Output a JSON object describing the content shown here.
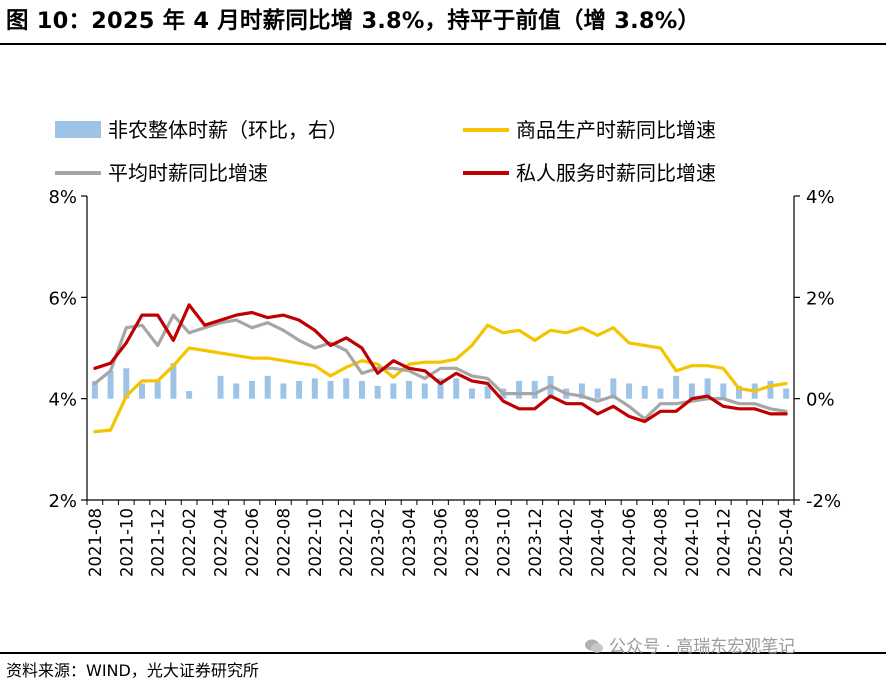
{
  "title": "图 10：2025 年 4 月时薪同比增 3.8%，持平于前值（增 3.8%）",
  "source": "资料来源：WIND，光大证券研究所",
  "watermark": "公众号 · 高瑞东宏观笔记",
  "colors": {
    "bar": "#9dc3e6",
    "goods": "#f5c400",
    "average": "#a6a6a6",
    "services": "#c00000"
  },
  "chart_data": {
    "type": "line",
    "x": [
      "2021-08",
      "2021-09",
      "2021-10",
      "2021-11",
      "2021-12",
      "2022-01",
      "2022-02",
      "2022-03",
      "2022-04",
      "2022-05",
      "2022-06",
      "2022-07",
      "2022-08",
      "2022-09",
      "2022-10",
      "2022-11",
      "2022-12",
      "2023-01",
      "2023-02",
      "2023-03",
      "2023-04",
      "2023-05",
      "2023-06",
      "2023-07",
      "2023-08",
      "2023-09",
      "2023-10",
      "2023-11",
      "2023-12",
      "2024-01",
      "2024-02",
      "2024-03",
      "2024-04",
      "2024-05",
      "2024-06",
      "2024-07",
      "2024-08",
      "2024-09",
      "2024-10",
      "2024-11",
      "2024-12",
      "2025-01",
      "2025-02",
      "2025-03",
      "2025-04"
    ],
    "x_tick_labels": [
      "2021-08",
      "2021-10",
      "2021-12",
      "2022-02",
      "2022-04",
      "2022-06",
      "2022-08",
      "2022-10",
      "2022-12",
      "2023-02",
      "2023-04",
      "2023-06",
      "2023-08",
      "2023-10",
      "2023-12",
      "2024-02",
      "2024-04",
      "2024-06",
      "2024-08",
      "2024-10",
      "2024-12",
      "2025-02",
      "2025-04"
    ],
    "y_left_range": [
      2,
      8
    ],
    "y_left_ticks": [
      "2%",
      "4%",
      "6%",
      "8%"
    ],
    "y_right_range": [
      -2,
      4
    ],
    "y_right_ticks": [
      "-2%",
      "0%",
      "2%",
      "4%"
    ],
    "legend_position": "top",
    "series": [
      {
        "name": "非农整体时薪（环比，右）",
        "kind": "bar",
        "axis": "right",
        "color": "#9dc3e6",
        "values": [
          0.35,
          0.55,
          0.6,
          0.3,
          0.35,
          0.7,
          0.15,
          0.0,
          0.45,
          0.3,
          0.35,
          0.45,
          0.3,
          0.35,
          0.4,
          0.35,
          0.4,
          0.35,
          0.25,
          0.3,
          0.35,
          0.3,
          0.4,
          0.4,
          0.2,
          0.25,
          0.2,
          0.35,
          0.35,
          0.45,
          0.2,
          0.3,
          0.2,
          0.4,
          0.3,
          0.25,
          0.2,
          0.45,
          0.3,
          0.4,
          0.3,
          0.25,
          0.3,
          0.35,
          0.2
        ]
      },
      {
        "name": "商品生产时薪同比增速",
        "kind": "line",
        "axis": "left",
        "color": "#f5c400",
        "values": [
          3.35,
          3.38,
          4.05,
          4.35,
          4.35,
          4.65,
          5.0,
          4.95,
          4.9,
          4.85,
          4.8,
          4.8,
          4.75,
          4.7,
          4.65,
          4.45,
          4.62,
          4.75,
          4.68,
          4.42,
          4.68,
          4.72,
          4.72,
          4.78,
          5.05,
          5.45,
          5.3,
          5.35,
          5.15,
          5.35,
          5.3,
          5.4,
          5.25,
          5.4,
          5.1,
          5.05,
          5.0,
          4.55,
          4.65,
          4.65,
          4.6,
          4.2,
          4.15,
          4.25,
          4.3
        ]
      },
      {
        "name": "平均时薪同比增速",
        "kind": "line",
        "axis": "left",
        "color": "#a6a6a6",
        "values": [
          4.3,
          4.55,
          5.4,
          5.45,
          5.05,
          5.65,
          5.3,
          5.4,
          5.5,
          5.55,
          5.4,
          5.5,
          5.35,
          5.15,
          5.0,
          5.1,
          4.95,
          4.5,
          4.6,
          4.6,
          4.55,
          4.4,
          4.6,
          4.6,
          4.45,
          4.4,
          4.1,
          4.1,
          4.1,
          4.25,
          4.1,
          4.05,
          3.95,
          4.05,
          3.85,
          3.6,
          3.9,
          3.9,
          3.95,
          4.0,
          4.0,
          3.9,
          3.9,
          3.8,
          3.75
        ]
      },
      {
        "name": "私人服务时薪同比增速",
        "kind": "line",
        "axis": "left",
        "color": "#c00000",
        "values": [
          4.6,
          4.7,
          5.1,
          5.65,
          5.65,
          5.15,
          5.85,
          5.45,
          5.55,
          5.65,
          5.7,
          5.6,
          5.65,
          5.55,
          5.35,
          5.05,
          5.2,
          5.0,
          4.5,
          4.75,
          4.6,
          4.55,
          4.3,
          4.5,
          4.35,
          4.3,
          3.95,
          3.8,
          3.8,
          4.05,
          3.9,
          3.9,
          3.7,
          3.85,
          3.65,
          3.55,
          3.75,
          3.75,
          4.0,
          4.05,
          3.85,
          3.8,
          3.8,
          3.7,
          3.7
        ]
      }
    ]
  }
}
